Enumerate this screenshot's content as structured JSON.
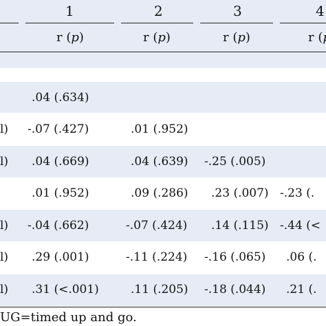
{
  "header": {
    "columns": [
      "1",
      "2",
      "3",
      "4"
    ],
    "sub_label": "r (",
    "sub_p": "p",
    "sub_close": ")"
  },
  "rows": [
    {
      "label": "",
      "c1": ".04 (.634)",
      "c2": "",
      "c3": "",
      "c4": ""
    },
    {
      "label": "l)",
      "c1": "-.07 (.427)",
      "c2": ".01 (.952)",
      "c3": "",
      "c4": ""
    },
    {
      "label": "l)",
      "c1": ".04 (.669)",
      "c2": ".04 (.639)",
      "c3": "-.25 (.005)",
      "c4": ""
    },
    {
      "label": "",
      "c1": ".01 (.952)",
      "c2": ".09 (.286)",
      "c3": ".23 (.007)",
      "c4": "-.23 (."
    },
    {
      "label": "l)",
      "c1": "-.04 (.662)",
      "c2": "-.07 (.424)",
      "c3": ".14 (.115)",
      "c4": "-.44 (<"
    },
    {
      "label": "l)",
      "c1": ".29 (.001)",
      "c2": "-.11 (.224)",
      "c3": "-.16 (.065)",
      "c4": ".06 (."
    },
    {
      "label": "l)",
      "c1": ".31 (<.001)",
      "c2": ".11 (.205)",
      "c3": "-.18 (.044)",
      "c4": ".21 (."
    }
  ],
  "footnote": "UG=timed up and go."
}
